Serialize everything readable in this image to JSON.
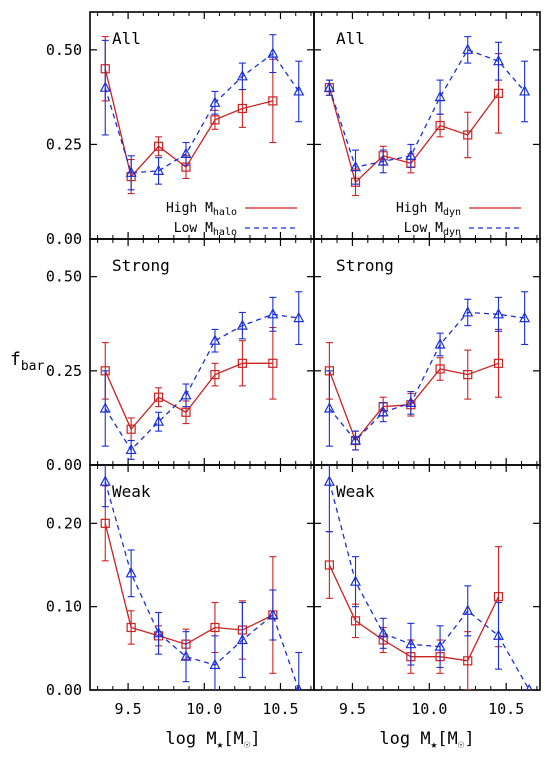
{
  "chart_data": {
    "type": "line",
    "ylabel": "f",
    "ylabel_sub": "bar",
    "xlabel_prefix": "log M",
    "xlabel_star": "★",
    "xlabel_unit_open": "[M",
    "xlabel_unit_sun": "☉",
    "xlabel_unit_close": "]",
    "xlim": [
      9.25,
      10.72
    ],
    "xticks": [
      "9.5",
      "10.0",
      "10.5"
    ],
    "xtick_values": [
      9.5,
      10.0,
      10.5
    ],
    "rows": [
      {
        "ylim": [
          0,
          0.6
        ],
        "yticks": [
          "0.00",
          "0.25",
          "0.50"
        ],
        "ytick_values": [
          0,
          0.25,
          0.5
        ]
      },
      {
        "ylim": [
          0,
          0.6
        ],
        "yticks": [
          "0.00",
          "0.25",
          "0.50"
        ],
        "ytick_values": [
          0,
          0.25,
          0.5
        ]
      },
      {
        "ylim": [
          0,
          0.27
        ],
        "yticks": [
          "0.00",
          "0.10",
          "0.20"
        ],
        "ytick_values": [
          0,
          0.1,
          0.2
        ]
      }
    ],
    "panels": [
      {
        "title": "All",
        "row": 0,
        "col": 0,
        "legend": {
          "high": "High M",
          "high_sub": "halo",
          "low": "Low M",
          "low_sub": "halo"
        },
        "series": [
          {
            "style": "high",
            "color": "#cc2222",
            "x": [
              9.35,
              9.52,
              9.7,
              9.88,
              10.07,
              10.25,
              10.45
            ],
            "y": [
              0.45,
              0.165,
              0.245,
              0.19,
              0.315,
              0.345,
              0.365
            ],
            "err": [
              0.085,
              0.045,
              0.025,
              0.03,
              0.025,
              0.05,
              0.11
            ]
          },
          {
            "style": "low",
            "color": "#1a2fd6",
            "x": [
              9.35,
              9.52,
              9.7,
              9.88,
              10.07,
              10.25,
              10.45,
              10.62
            ],
            "y": [
              0.4,
              0.175,
              0.18,
              0.225,
              0.36,
              0.43,
              0.49,
              0.39
            ],
            "err": [
              0.125,
              0.045,
              0.035,
              0.03,
              0.03,
              0.035,
              0.05,
              0.08
            ]
          }
        ]
      },
      {
        "title": "All",
        "row": 0,
        "col": 1,
        "legend": {
          "high": "High M",
          "high_sub": "dyn",
          "low": "Low M",
          "low_sub": "dyn"
        },
        "series": [
          {
            "style": "high",
            "color": "#cc2222",
            "x": [
              9.35,
              9.52,
              9.7,
              9.88,
              10.07,
              10.25,
              10.45
            ],
            "y": [
              0.4,
              0.15,
              0.22,
              0.2,
              0.3,
              0.275,
              0.385
            ],
            "err": [
              0.02,
              0.035,
              0.025,
              0.025,
              0.03,
              0.06,
              0.105
            ]
          },
          {
            "style": "low",
            "color": "#1a2fd6",
            "x": [
              9.35,
              9.52,
              9.7,
              9.88,
              10.07,
              10.25,
              10.45,
              10.62
            ],
            "y": [
              0.4,
              0.19,
              0.205,
              0.22,
              0.375,
              0.5,
              0.47,
              0.39
            ],
            "err": [
              0.02,
              0.045,
              0.03,
              0.03,
              0.045,
              0.035,
              0.05,
              0.08
            ]
          }
        ]
      },
      {
        "title": "Strong",
        "row": 1,
        "col": 0,
        "series": [
          {
            "style": "high",
            "color": "#cc2222",
            "x": [
              9.35,
              9.52,
              9.7,
              9.88,
              10.07,
              10.25,
              10.45
            ],
            "y": [
              0.25,
              0.095,
              0.18,
              0.14,
              0.24,
              0.27,
              0.27
            ],
            "err": [
              0.075,
              0.03,
              0.025,
              0.03,
              0.03,
              0.06,
              0.095
            ]
          },
          {
            "style": "low",
            "color": "#1a2fd6",
            "x": [
              9.35,
              9.52,
              9.7,
              9.88,
              10.07,
              10.25,
              10.45,
              10.62
            ],
            "y": [
              0.15,
              0.04,
              0.115,
              0.185,
              0.33,
              0.37,
              0.4,
              0.39
            ],
            "err": [
              0.1,
              0.025,
              0.025,
              0.03,
              0.03,
              0.035,
              0.045,
              0.07
            ]
          }
        ]
      },
      {
        "title": "Strong",
        "row": 1,
        "col": 1,
        "series": [
          {
            "style": "high",
            "color": "#cc2222",
            "x": [
              9.35,
              9.52,
              9.7,
              9.88,
              10.07,
              10.25,
              10.45
            ],
            "y": [
              0.25,
              0.065,
              0.155,
              0.16,
              0.255,
              0.24,
              0.27
            ],
            "err": [
              0.075,
              0.025,
              0.025,
              0.03,
              0.03,
              0.065,
              0.09
            ]
          },
          {
            "style": "low",
            "color": "#1a2fd6",
            "x": [
              9.35,
              9.52,
              9.7,
              9.88,
              10.07,
              10.25,
              10.45,
              10.62
            ],
            "y": [
              0.15,
              0.065,
              0.14,
              0.165,
              0.32,
              0.405,
              0.4,
              0.39
            ],
            "err": [
              0.1,
              0.025,
              0.025,
              0.03,
              0.03,
              0.035,
              0.045,
              0.07
            ]
          }
        ]
      },
      {
        "title": "Weak",
        "row": 2,
        "col": 0,
        "series": [
          {
            "style": "high",
            "color": "#cc2222",
            "x": [
              9.35,
              9.52,
              9.7,
              9.88,
              10.07,
              10.25,
              10.45
            ],
            "y": [
              0.2,
              0.075,
              0.065,
              0.055,
              0.075,
              0.072,
              0.09
            ],
            "err": [
              0.045,
              0.02,
              0.012,
              0.018,
              0.03,
              0.035,
              0.07
            ]
          },
          {
            "style": "low",
            "color": "#1a2fd6",
            "x": [
              9.35,
              9.52,
              9.7,
              9.88,
              10.07,
              10.25,
              10.45,
              10.62
            ],
            "y": [
              0.25,
              0.14,
              0.068,
              0.04,
              0.03,
              0.06,
              0.09,
              0.0
            ],
            "err": [
              0.03,
              0.028,
              0.025,
              0.03,
              0.035,
              0.045,
              0.03,
              0.045
            ]
          }
        ]
      },
      {
        "title": "Weak",
        "row": 2,
        "col": 1,
        "series": [
          {
            "style": "high",
            "color": "#cc2222",
            "x": [
              9.35,
              9.52,
              9.7,
              9.88,
              10.07,
              10.25,
              10.45
            ],
            "y": [
              0.15,
              0.083,
              0.06,
              0.04,
              0.04,
              0.035,
              0.112
            ],
            "err": [
              0.04,
              0.02,
              0.015,
              0.02,
              0.02,
              0.035,
              0.06
            ]
          },
          {
            "style": "low",
            "color": "#1a2fd6",
            "x": [
              9.35,
              9.52,
              9.7,
              9.88,
              10.07,
              10.25,
              10.45,
              10.65
            ],
            "y": [
              0.25,
              0.13,
              0.068,
              0.055,
              0.052,
              0.095,
              0.065,
              0.0
            ],
            "err": [
              0.06,
              0.03,
              0.018,
              0.025,
              0.025,
              0.03,
              0.04,
              0.0
            ]
          }
        ]
      }
    ]
  }
}
